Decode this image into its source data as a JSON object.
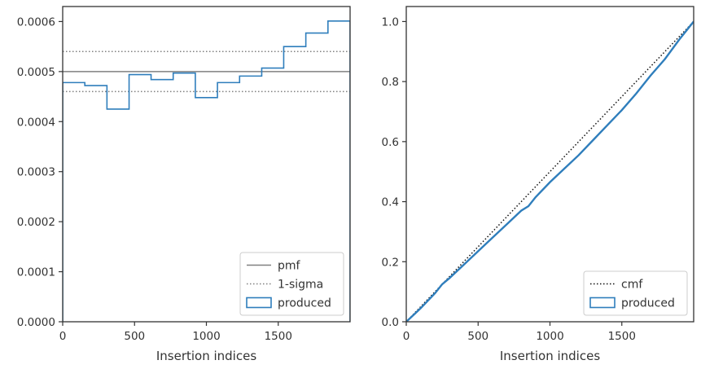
{
  "colors": {
    "produced": "#2f7ebc",
    "pmf": "#808080",
    "sigma": "#808080",
    "cmf": "#111111",
    "axes": "#333333"
  },
  "chart_data": [
    {
      "type": "histogram-step",
      "xlabel": "Insertion indices",
      "ylabel": "",
      "xlim": [
        0,
        2000
      ],
      "ylim": [
        0,
        0.00063
      ],
      "x_ticks": [
        0,
        500,
        1000,
        1500
      ],
      "x_tick_labels": [
        "0",
        "500",
        "1000",
        "1500"
      ],
      "y_ticks": [
        0,
        0.0001,
        0.0002,
        0.0003,
        0.0004,
        0.0005,
        0.0006
      ],
      "y_tick_labels": [
        "0.0000",
        "0.0001",
        "0.0002",
        "0.0003",
        "0.0004",
        "0.0005",
        "0.0006"
      ],
      "bin_edges": [
        0,
        154,
        308,
        462,
        615,
        769,
        923,
        1077,
        1231,
        1385,
        1538,
        1692,
        1846,
        2000
      ],
      "values": [
        0.000478,
        0.000472,
        0.000425,
        0.000494,
        0.000484,
        0.000497,
        0.000448,
        0.000478,
        0.000491,
        0.000507,
        0.00055,
        0.000577,
        0.000601
      ],
      "reference_lines": [
        {
          "name": "pmf",
          "y": 0.0005,
          "style": "solid"
        },
        {
          "name": "1-sigma",
          "y": 0.00054,
          "style": "dotted"
        },
        {
          "name": "1-sigma",
          "y": 0.00046,
          "style": "dotted"
        }
      ],
      "legend": {
        "position": "lower right",
        "entries": [
          "pmf",
          "1-sigma",
          "produced"
        ]
      }
    },
    {
      "type": "line",
      "xlabel": "Insertion indices",
      "ylabel": "",
      "xlim": [
        0,
        2000
      ],
      "ylim": [
        0,
        1.05
      ],
      "x_ticks": [
        0,
        500,
        1000,
        1500
      ],
      "x_tick_labels": [
        "0",
        "500",
        "1000",
        "1500"
      ],
      "y_ticks": [
        0,
        0.2,
        0.4,
        0.6,
        0.8,
        1.0
      ],
      "y_tick_labels": [
        "0.0",
        "0.2",
        "0.4",
        "0.6",
        "0.8",
        "1.0"
      ],
      "series": [
        {
          "name": "cmf",
          "style": "dotted",
          "x": [
            0,
            2000
          ],
          "y": [
            0,
            1.0
          ]
        },
        {
          "name": "produced",
          "style": "step",
          "x": [
            0,
            100,
            200,
            250,
            300,
            400,
            500,
            600,
            700,
            800,
            850,
            900,
            1000,
            1100,
            1200,
            1300,
            1400,
            1500,
            1600,
            1700,
            1800,
            1900,
            2000
          ],
          "y": [
            0,
            0.045,
            0.095,
            0.125,
            0.145,
            0.19,
            0.235,
            0.28,
            0.325,
            0.37,
            0.385,
            0.415,
            0.465,
            0.51,
            0.555,
            0.605,
            0.655,
            0.705,
            0.76,
            0.82,
            0.875,
            0.94,
            1.0
          ]
        }
      ],
      "legend": {
        "position": "lower right",
        "entries": [
          "cmf",
          "produced"
        ]
      }
    }
  ]
}
